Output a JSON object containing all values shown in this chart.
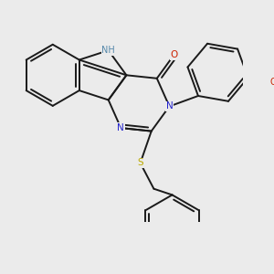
{
  "background_color": "#ebebeb",
  "bond_color": "#1a1a1a",
  "atom_colors": {
    "N": "#2222cc",
    "NH": "#5588aa",
    "O": "#cc2200",
    "S": "#bbaa00",
    "F": "#bb00aa"
  },
  "bond_width": 1.4,
  "fig_size": [
    3.0,
    3.0
  ],
  "dpi": 100
}
